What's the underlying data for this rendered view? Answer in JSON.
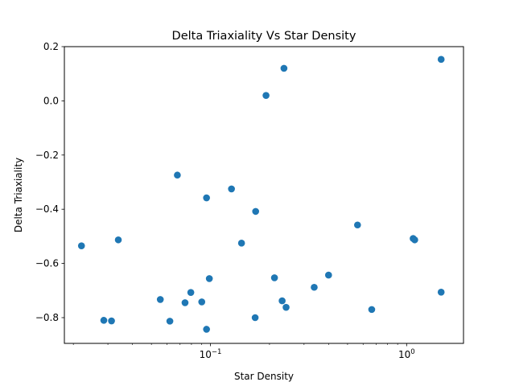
{
  "chart_data": {
    "type": "scatter",
    "title": "Delta Triaxiality Vs Star Density",
    "xlabel": "Star Density",
    "ylabel": "Delta Triaxiality",
    "xscale": "log",
    "xlim": [
      0.018,
      1.95
    ],
    "ylim": [
      -0.895,
      0.2
    ],
    "grid": false,
    "marker_color": "#1f77b4",
    "x_ticks": [
      {
        "value": 0.1,
        "base": "10",
        "exp": "−1"
      },
      {
        "value": 1,
        "base": "10",
        "exp": "0"
      }
    ],
    "y_ticks": [
      {
        "value": 0.2,
        "label": "0.2"
      },
      {
        "value": 0.0,
        "label": "0.0"
      },
      {
        "value": -0.2,
        "label": "−0.2"
      },
      {
        "value": -0.4,
        "label": "−0.4"
      },
      {
        "value": -0.6,
        "label": "−0.6"
      },
      {
        "value": -0.8,
        "label": "−0.8"
      }
    ],
    "points": [
      {
        "x": 0.022,
        "y": -0.535
      },
      {
        "x": 0.0286,
        "y": -0.81
      },
      {
        "x": 0.0313,
        "y": -0.812
      },
      {
        "x": 0.0339,
        "y": -0.513
      },
      {
        "x": 0.0555,
        "y": -0.733
      },
      {
        "x": 0.0621,
        "y": -0.813
      },
      {
        "x": 0.0678,
        "y": -0.274
      },
      {
        "x": 0.0742,
        "y": -0.745
      },
      {
        "x": 0.0794,
        "y": -0.707
      },
      {
        "x": 0.0903,
        "y": -0.742
      },
      {
        "x": 0.0955,
        "y": -0.358
      },
      {
        "x": 0.0955,
        "y": -0.843
      },
      {
        "x": 0.0987,
        "y": -0.656
      },
      {
        "x": 0.128,
        "y": -0.325
      },
      {
        "x": 0.144,
        "y": -0.525
      },
      {
        "x": 0.169,
        "y": -0.8
      },
      {
        "x": 0.17,
        "y": -0.408
      },
      {
        "x": 0.192,
        "y": 0.02
      },
      {
        "x": 0.212,
        "y": -0.653
      },
      {
        "x": 0.232,
        "y": -0.738
      },
      {
        "x": 0.237,
        "y": 0.12
      },
      {
        "x": 0.243,
        "y": -0.762
      },
      {
        "x": 0.338,
        "y": -0.688
      },
      {
        "x": 0.4,
        "y": -0.643
      },
      {
        "x": 0.562,
        "y": -0.458
      },
      {
        "x": 0.664,
        "y": -0.77
      },
      {
        "x": 1.08,
        "y": -0.508
      },
      {
        "x": 1.1,
        "y": -0.513
      },
      {
        "x": 1.5,
        "y": 0.153
      },
      {
        "x": 1.5,
        "y": -0.706
      }
    ]
  }
}
